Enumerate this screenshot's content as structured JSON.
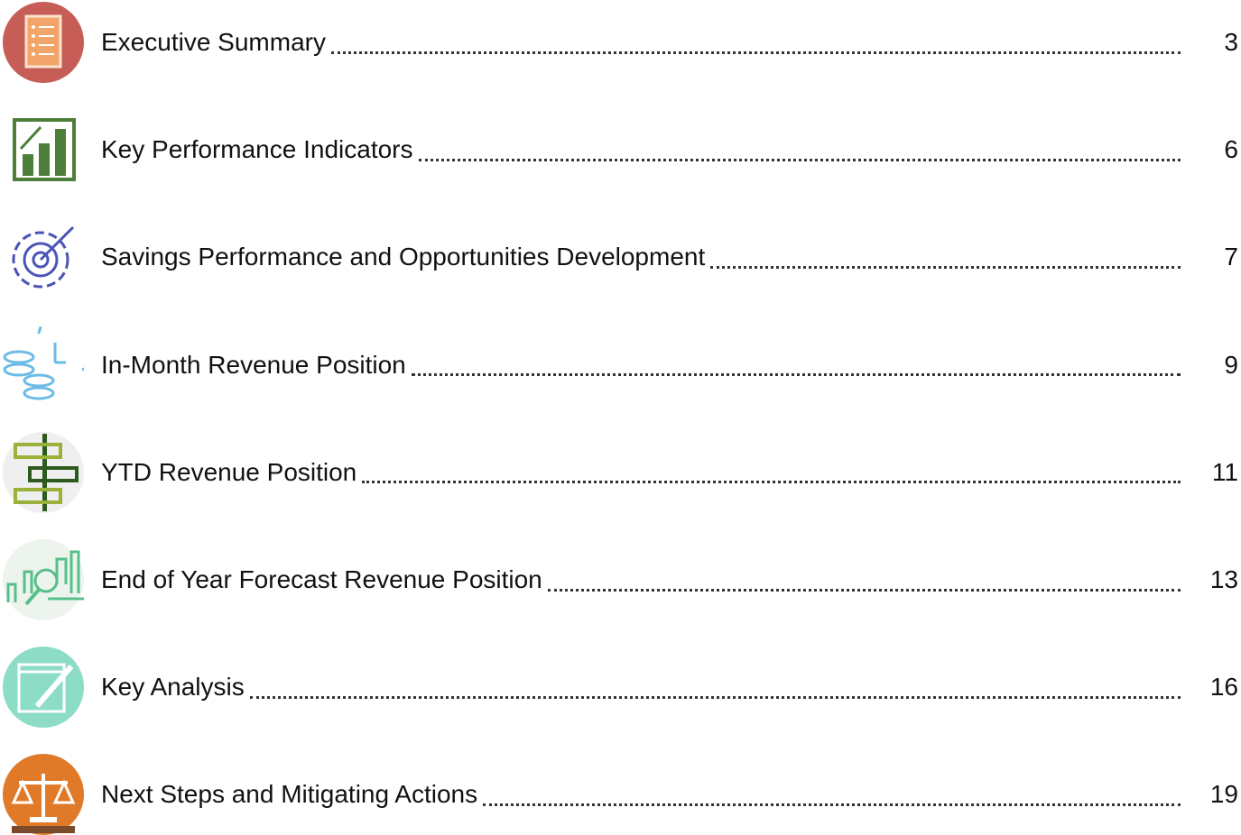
{
  "toc": {
    "entries": [
      {
        "title": "Executive Summary",
        "page": "3"
      },
      {
        "title": "Key Performance Indicators",
        "page": "6"
      },
      {
        "title": "Savings Performance and Opportunities Development",
        "page": "7"
      },
      {
        "title": "In-Month Revenue Position",
        "page": "9"
      },
      {
        "title": "YTD Revenue Position",
        "page": "11"
      },
      {
        "title": "End of Year Forecast Revenue Position",
        "page": "13"
      },
      {
        "title": "Key Analysis",
        "page": "16"
      },
      {
        "title": "Next Steps and Mitigating Actions",
        "page": "19"
      }
    ]
  }
}
